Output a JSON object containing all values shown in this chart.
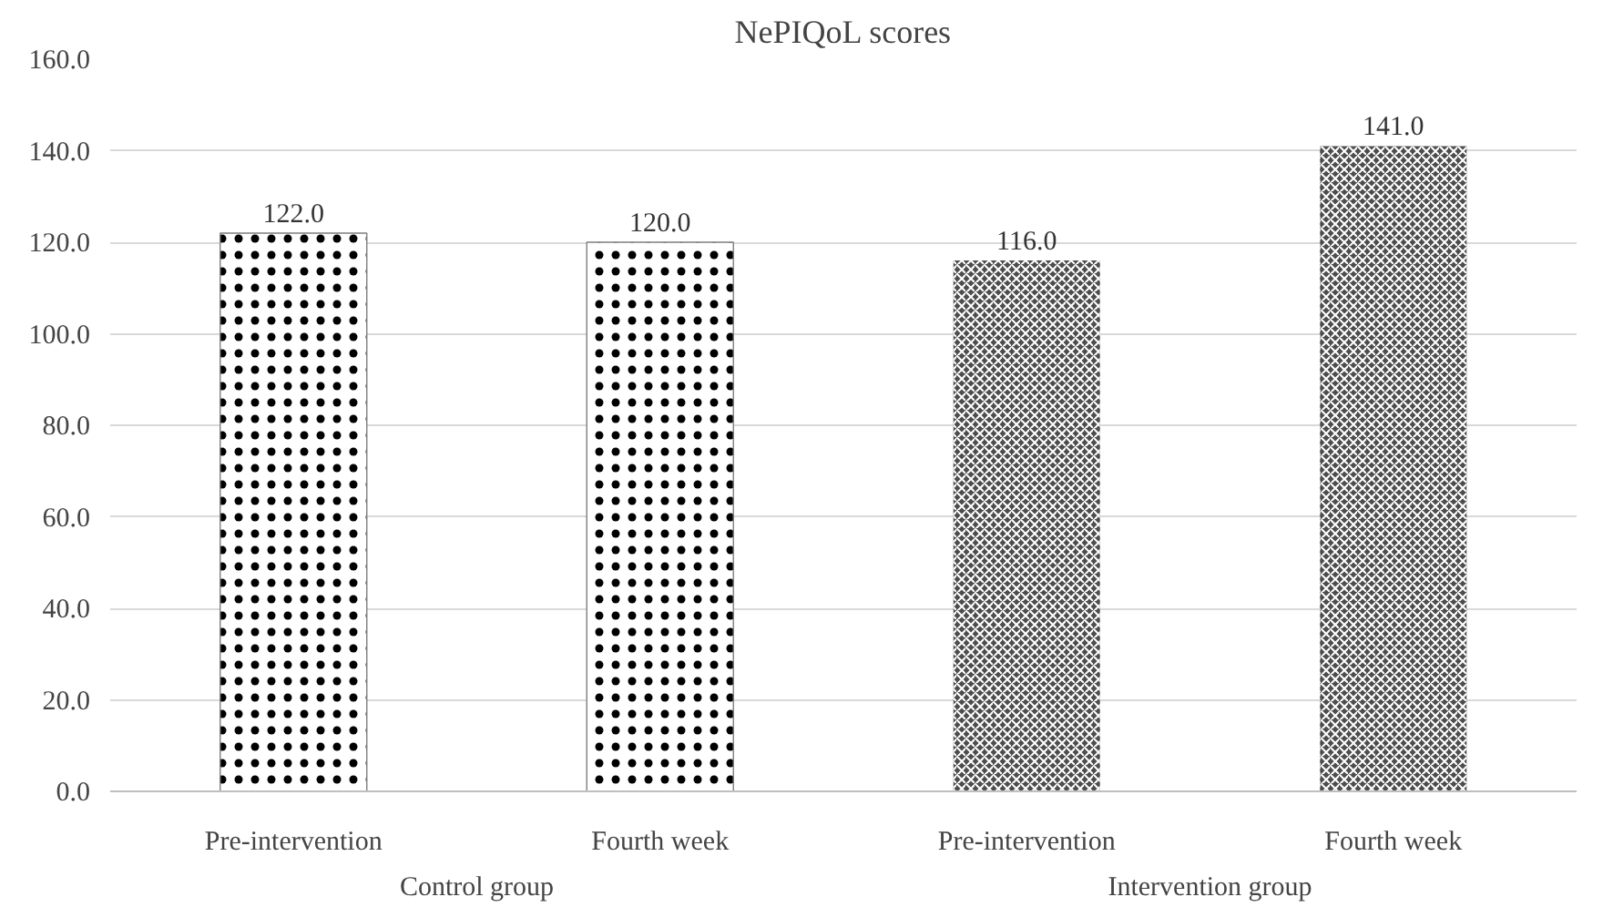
{
  "chart_data": {
    "type": "bar",
    "title": "NePIQoL scores",
    "categories": [
      "Pre-intervention",
      "Fourth week",
      "Pre-intervention",
      "Fourth week"
    ],
    "values": [
      122.0,
      120.0,
      116.0,
      141.0
    ],
    "colors": [
      "#ffffff",
      "#ffffff",
      "#4d4d4d",
      "#4d4d4d"
    ],
    "value_labels": [
      "122.0",
      "120.0",
      "116.0",
      "141.0"
    ],
    "ylim": [
      0,
      160
    ],
    "yticks": [
      {
        "value": 0,
        "label": "0.0"
      },
      {
        "value": 20,
        "label": "20.0"
      },
      {
        "value": 40,
        "label": "40.0"
      },
      {
        "value": 60,
        "label": "60.0"
      },
      {
        "value": 80,
        "label": "80.0"
      },
      {
        "value": 100,
        "label": "100.0"
      },
      {
        "value": 120,
        "label": "120.0"
      },
      {
        "value": 140,
        "label": "140.0"
      },
      {
        "value": 160,
        "label": "160.0"
      }
    ],
    "annotations": [
      "Control group",
      "Intervention group"
    ],
    "grid": "y"
  }
}
